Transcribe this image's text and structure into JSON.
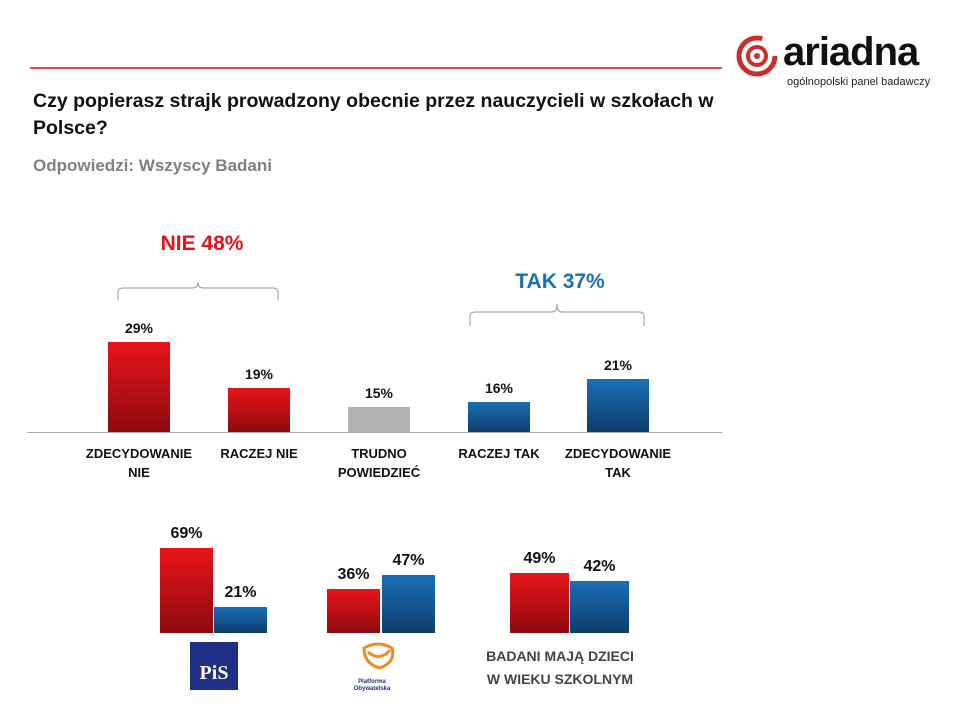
{
  "header": {
    "title": "Czy popierasz strajk prowadzony obecnie przez nauczycieli w szkołach w Polsce?",
    "subtitle": "Odpowiedzi: Wszyscy Badani",
    "logo_text": "ariadna",
    "logo_subtitle": "ogólnopolski panel badawczy"
  },
  "chart_data": [
    {
      "type": "bar",
      "categories": [
        "ZDECYDOWANIE NIE",
        "RACZEJ NIE",
        "TRUDNO POWIEDZIEĆ",
        "RACZEJ TAK",
        "ZDECYDOWANIE TAK"
      ],
      "values": [
        29,
        19,
        15,
        16,
        21
      ],
      "value_labels": [
        "29%",
        "19%",
        "15%",
        "16%",
        "21%"
      ],
      "colors": [
        "#d81016",
        "#d81016",
        "#b1b1b1",
        "#15609f",
        "#15609f"
      ],
      "groups": [
        {
          "label": "NIE 48%",
          "color": "#e8101a",
          "members": [
            0,
            1
          ]
        },
        {
          "label": "TAK 37%",
          "color": "#1a6fb8",
          "members": [
            3,
            4
          ]
        }
      ],
      "ylim": [
        9.5,
        35
      ],
      "grid": false,
      "legend": "none"
    },
    {
      "type": "bar",
      "categories": [
        "PiS",
        "Platforma Obywatelska",
        "BADANI MAJĄ DZIECI W WIEKU SZKOLNYM"
      ],
      "series": [
        {
          "values": [
            69,
            36,
            49
          ],
          "labels": [
            "69%",
            "36%",
            "49%"
          ],
          "color": "#d81016"
        },
        {
          "values": [
            21,
            47,
            42
          ],
          "labels": [
            "21%",
            "47%",
            "42%"
          ],
          "color": "#15609f"
        }
      ],
      "ylim": [
        0,
        75
      ],
      "grid": false,
      "legend": "none"
    }
  ],
  "logos": {
    "pis": "PiS",
    "po": "Platforma Obywatelska"
  },
  "kids_label": "BADANI MAJĄ DZIECI W WIEKU SZKOLNYM"
}
